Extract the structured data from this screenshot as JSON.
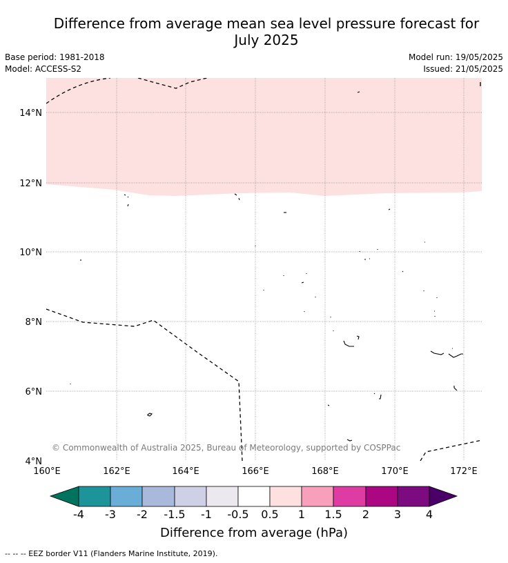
{
  "title_line1": "Difference from average mean sea level pressure forecast for",
  "title_line2": "July 2025",
  "meta_left": {
    "base_period": "Base period: 1981-2018",
    "model": "Model: ACCESS-S2"
  },
  "meta_right": {
    "model_run": "Model run: 19/05/2025",
    "issued": "Issued: 21/05/2025"
  },
  "map": {
    "lat_ticks": [
      "14°N",
      "12°N",
      "10°N",
      "8°N",
      "6°N",
      "4°N"
    ],
    "lon_ticks": [
      "160°E",
      "162°E",
      "164°E",
      "166°E",
      "168°E",
      "170°E",
      "172°E"
    ],
    "copyright": "© Commonwealth of Australia 2025, Bureau of Meteorology, supported by COSPPac",
    "anomaly_region": {
      "category": "0.5 to 1 hPa",
      "color": "#fde0e0",
      "north_of_lat": "≈11.6–11.9°N"
    }
  },
  "legend": {
    "title": "Difference from average (hPa)",
    "tick_labels": [
      "-4",
      "-3",
      "-2",
      "-1.5",
      "-1",
      "-0.5",
      "0.5",
      "1",
      "1.5",
      "2",
      "3",
      "4"
    ],
    "colors": [
      "#00735e",
      "#1d9499",
      "#6aadd6",
      "#a8b9db",
      "#ced0e6",
      "#ebe8ef",
      "#ffffff",
      "#fde0e0",
      "#f8a0bb",
      "#de3ca3",
      "#ab0783",
      "#7c0b80",
      "#4b0068"
    ]
  },
  "footer": "--  --  -- EEZ border V11 (Flanders Marine Institute, 2019)."
}
